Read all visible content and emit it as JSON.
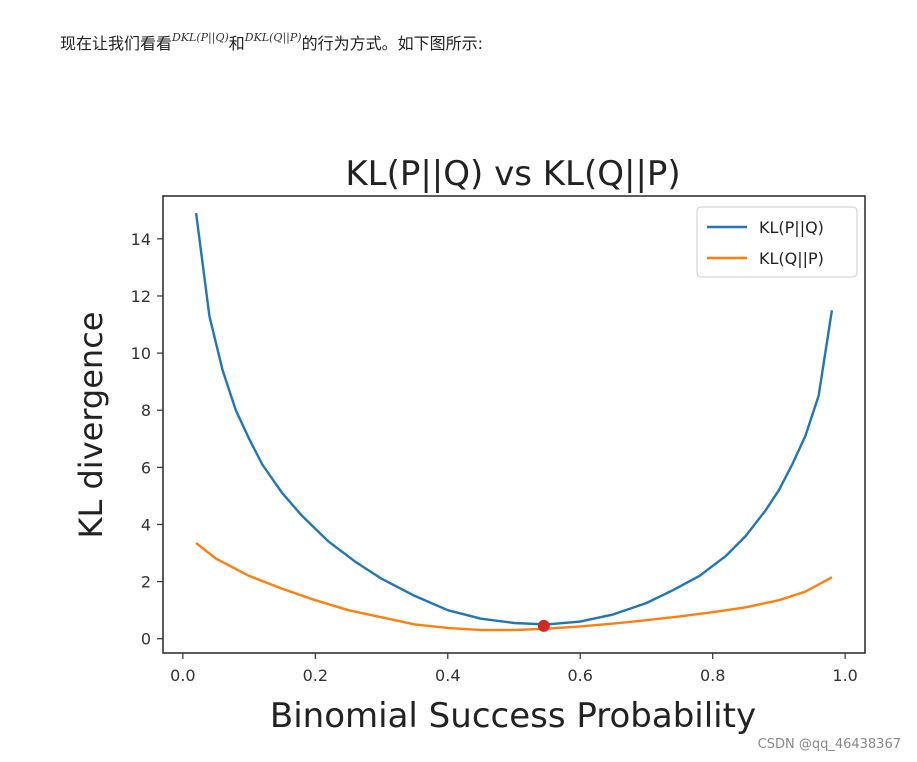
{
  "intro": {
    "text_before": "现在让我们看看",
    "math1": "D_{KL}(P||Q)",
    "math1_display": "DKL(P||Q)",
    "text_middle": "和",
    "math2": "D_{KL}(Q||P)",
    "math2_display": "DKL(Q||P)",
    "text_after": "的行为方式。如下图所示:"
  },
  "watermark": "CSDN @qq_46438367",
  "chart_data": {
    "type": "line",
    "title": "KL(P||Q) vs KL(Q||P)",
    "xlabel": "Binomial Success Probability",
    "ylabel": "KL divergence",
    "xlim": [
      -0.03,
      1.03
    ],
    "ylim": [
      -0.5,
      15.5
    ],
    "xticks": [
      0.0,
      0.2,
      0.4,
      0.6,
      0.8,
      1.0
    ],
    "xtick_labels": [
      "0.0",
      "0.2",
      "0.4",
      "0.6",
      "0.8",
      "1.0"
    ],
    "yticks": [
      0,
      2,
      4,
      6,
      8,
      10,
      12,
      14
    ],
    "ytick_labels": [
      "0",
      "2",
      "4",
      "6",
      "8",
      "10",
      "12",
      "14"
    ],
    "grid": false,
    "legend_position": "top-right",
    "series": [
      {
        "name": "KL(P||Q)",
        "color": "#1f77b4",
        "x": [
          0.02,
          0.04,
          0.06,
          0.08,
          0.1,
          0.12,
          0.15,
          0.18,
          0.22,
          0.26,
          0.3,
          0.35,
          0.4,
          0.45,
          0.5,
          0.55,
          0.6,
          0.65,
          0.7,
          0.74,
          0.78,
          0.82,
          0.85,
          0.88,
          0.9,
          0.92,
          0.94,
          0.96,
          0.98
        ],
        "y": [
          14.9,
          11.3,
          9.4,
          8.0,
          7.0,
          6.1,
          5.1,
          4.3,
          3.4,
          2.7,
          2.1,
          1.5,
          1.0,
          0.7,
          0.55,
          0.5,
          0.6,
          0.85,
          1.25,
          1.7,
          2.2,
          2.9,
          3.6,
          4.5,
          5.2,
          6.1,
          7.1,
          8.5,
          11.5
        ]
      },
      {
        "name": "KL(Q||P)",
        "color": "#ff7f0e",
        "x": [
          0.02,
          0.05,
          0.1,
          0.15,
          0.2,
          0.25,
          0.3,
          0.35,
          0.4,
          0.45,
          0.5,
          0.55,
          0.6,
          0.65,
          0.7,
          0.75,
          0.8,
          0.85,
          0.9,
          0.94,
          0.96,
          0.98
        ],
        "y": [
          3.35,
          2.8,
          2.2,
          1.75,
          1.35,
          1.0,
          0.75,
          0.5,
          0.38,
          0.3,
          0.3,
          0.35,
          0.43,
          0.53,
          0.65,
          0.78,
          0.93,
          1.1,
          1.35,
          1.65,
          1.9,
          2.15
        ]
      }
    ],
    "markers": [
      {
        "x": 0.545,
        "y": 0.45,
        "color": "#d62728"
      }
    ]
  }
}
